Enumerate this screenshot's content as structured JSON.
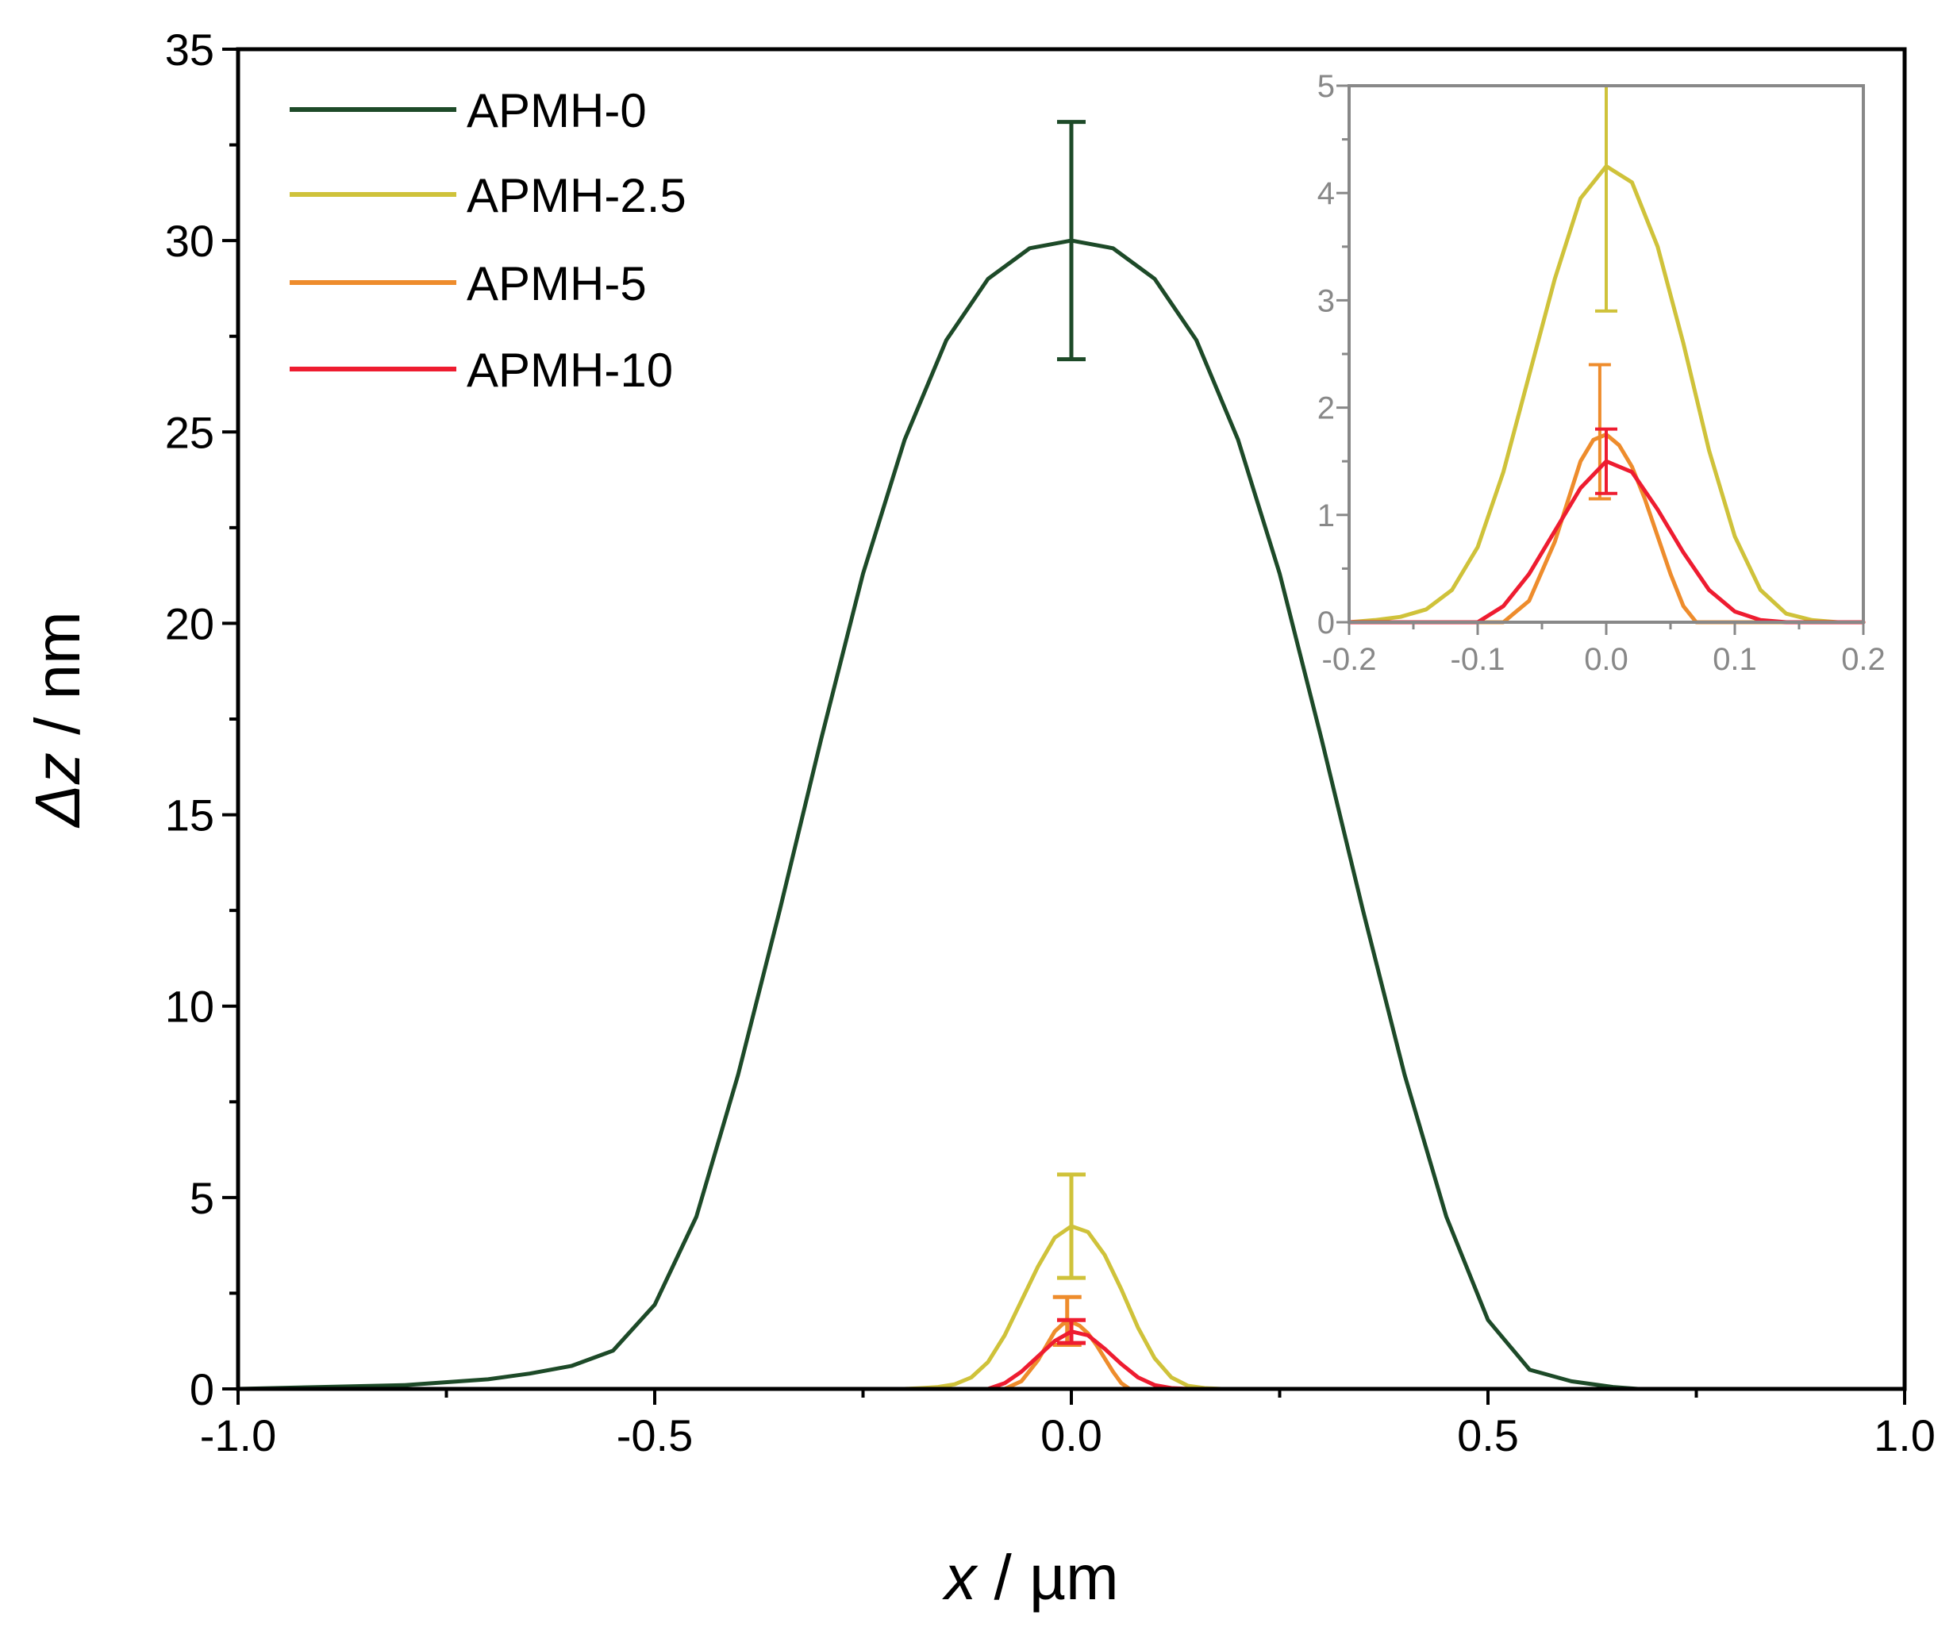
{
  "chart_data": [
    {
      "id": "main",
      "type": "line",
      "title": "",
      "xlabel": {
        "var": "x",
        "unit": " / µm"
      },
      "ylabel": {
        "var": "Δz",
        "unit": " / nm"
      },
      "xlim": [
        -1.0,
        1.0
      ],
      "ylim": [
        0,
        35
      ],
      "xticks": [
        -1.0,
        -0.5,
        0.0,
        0.5,
        1.0
      ],
      "xtick_labels": [
        "-1.0",
        "-0.5",
        "0.0",
        "0.5",
        "1.0"
      ],
      "xminor": [
        -0.75,
        -0.25,
        0.25,
        0.75
      ],
      "yticks": [
        0,
        5,
        10,
        15,
        20,
        25,
        30,
        35
      ],
      "ytick_labels": [
        "0",
        "5",
        "10",
        "15",
        "20",
        "25",
        "30",
        "35"
      ],
      "yminor": [
        2.5,
        7.5,
        12.5,
        17.5,
        22.5,
        27.5,
        32.5
      ],
      "grid": false,
      "legend_position": "top-left",
      "series": [
        {
          "name": "APMH-0",
          "color": "#1d4a28",
          "x": [
            -1.0,
            -0.9,
            -0.8,
            -0.7,
            -0.65,
            -0.6,
            -0.55,
            -0.5,
            -0.45,
            -0.4,
            -0.35,
            -0.3,
            -0.25,
            -0.2,
            -0.15,
            -0.1,
            -0.05,
            0.0,
            0.05,
            0.1,
            0.15,
            0.2,
            0.25,
            0.3,
            0.35,
            0.4,
            0.45,
            0.5,
            0.55,
            0.6,
            0.65,
            0.68
          ],
          "y": [
            0.0,
            0.05,
            0.1,
            0.25,
            0.4,
            0.6,
            1.0,
            2.2,
            4.5,
            8.2,
            12.5,
            17.0,
            21.3,
            24.8,
            27.4,
            29.0,
            29.8,
            30.0,
            29.8,
            29.0,
            27.4,
            24.8,
            21.3,
            17.0,
            12.5,
            8.2,
            4.5,
            1.8,
            0.5,
            0.2,
            0.05,
            0.0
          ],
          "error_bar": {
            "x": 0.0,
            "low": 26.9,
            "high": 33.1
          }
        },
        {
          "name": "APMH-2.5",
          "color": "#cfc23a",
          "x": [
            -0.2,
            -0.18,
            -0.16,
            -0.14,
            -0.12,
            -0.1,
            -0.08,
            -0.06,
            -0.04,
            -0.02,
            0.0,
            0.02,
            0.04,
            0.06,
            0.08,
            0.1,
            0.12,
            0.14,
            0.16,
            0.18,
            0.2
          ],
          "y": [
            0.0,
            0.02,
            0.05,
            0.12,
            0.3,
            0.7,
            1.4,
            2.3,
            3.2,
            3.95,
            4.25,
            4.1,
            3.5,
            2.6,
            1.6,
            0.8,
            0.3,
            0.08,
            0.02,
            0.0,
            0.0
          ],
          "error_bar": {
            "x": 0.0,
            "low": 2.9,
            "high": 5.6
          }
        },
        {
          "name": "APMH-5",
          "color": "#ee8c2c",
          "x": [
            -0.2,
            -0.12,
            -0.08,
            -0.06,
            -0.04,
            -0.02,
            -0.01,
            0.0,
            0.01,
            0.02,
            0.03,
            0.04,
            0.05,
            0.06,
            0.07,
            0.08,
            0.12,
            0.2
          ],
          "y": [
            0.0,
            0.0,
            0.0,
            0.2,
            0.75,
            1.5,
            1.7,
            1.75,
            1.65,
            1.45,
            1.15,
            0.8,
            0.45,
            0.15,
            0.0,
            0.0,
            0.0,
            0.0
          ],
          "error_bar": {
            "x": -0.005,
            "low": 1.15,
            "high": 2.4
          }
        },
        {
          "name": "APMH-10",
          "color": "#ee1c30",
          "x": [
            -0.2,
            -0.12,
            -0.1,
            -0.08,
            -0.06,
            -0.04,
            -0.02,
            0.0,
            0.02,
            0.04,
            0.06,
            0.08,
            0.1,
            0.12,
            0.14,
            0.2
          ],
          "y": [
            0.0,
            0.0,
            0.0,
            0.15,
            0.45,
            0.85,
            1.25,
            1.5,
            1.4,
            1.05,
            0.65,
            0.3,
            0.1,
            0.02,
            0.0,
            0.0
          ],
          "error_bar": {
            "x": 0.0,
            "low": 1.2,
            "high": 1.8
          }
        }
      ]
    },
    {
      "id": "inset",
      "type": "line",
      "title": "",
      "xlabel": "",
      "ylabel": "",
      "xlim": [
        -0.2,
        0.2
      ],
      "ylim": [
        0,
        5
      ],
      "xticks": [
        -0.2,
        -0.1,
        0.0,
        0.1,
        0.2
      ],
      "xtick_labels": [
        "-0.2",
        "-0.1",
        "0.0",
        "0.1",
        "0.2"
      ],
      "xminor": [
        -0.15,
        -0.05,
        0.05,
        0.15
      ],
      "yticks": [
        0,
        1,
        2,
        3,
        4,
        5
      ],
      "ytick_labels": [
        "0",
        "1",
        "2",
        "3",
        "4",
        "5"
      ],
      "yminor": [
        0.5,
        1.5,
        2.5,
        3.5,
        4.5
      ],
      "grid": false,
      "series_from": "main",
      "series_names": [
        "APMH-2.5",
        "APMH-5",
        "APMH-10"
      ]
    }
  ]
}
